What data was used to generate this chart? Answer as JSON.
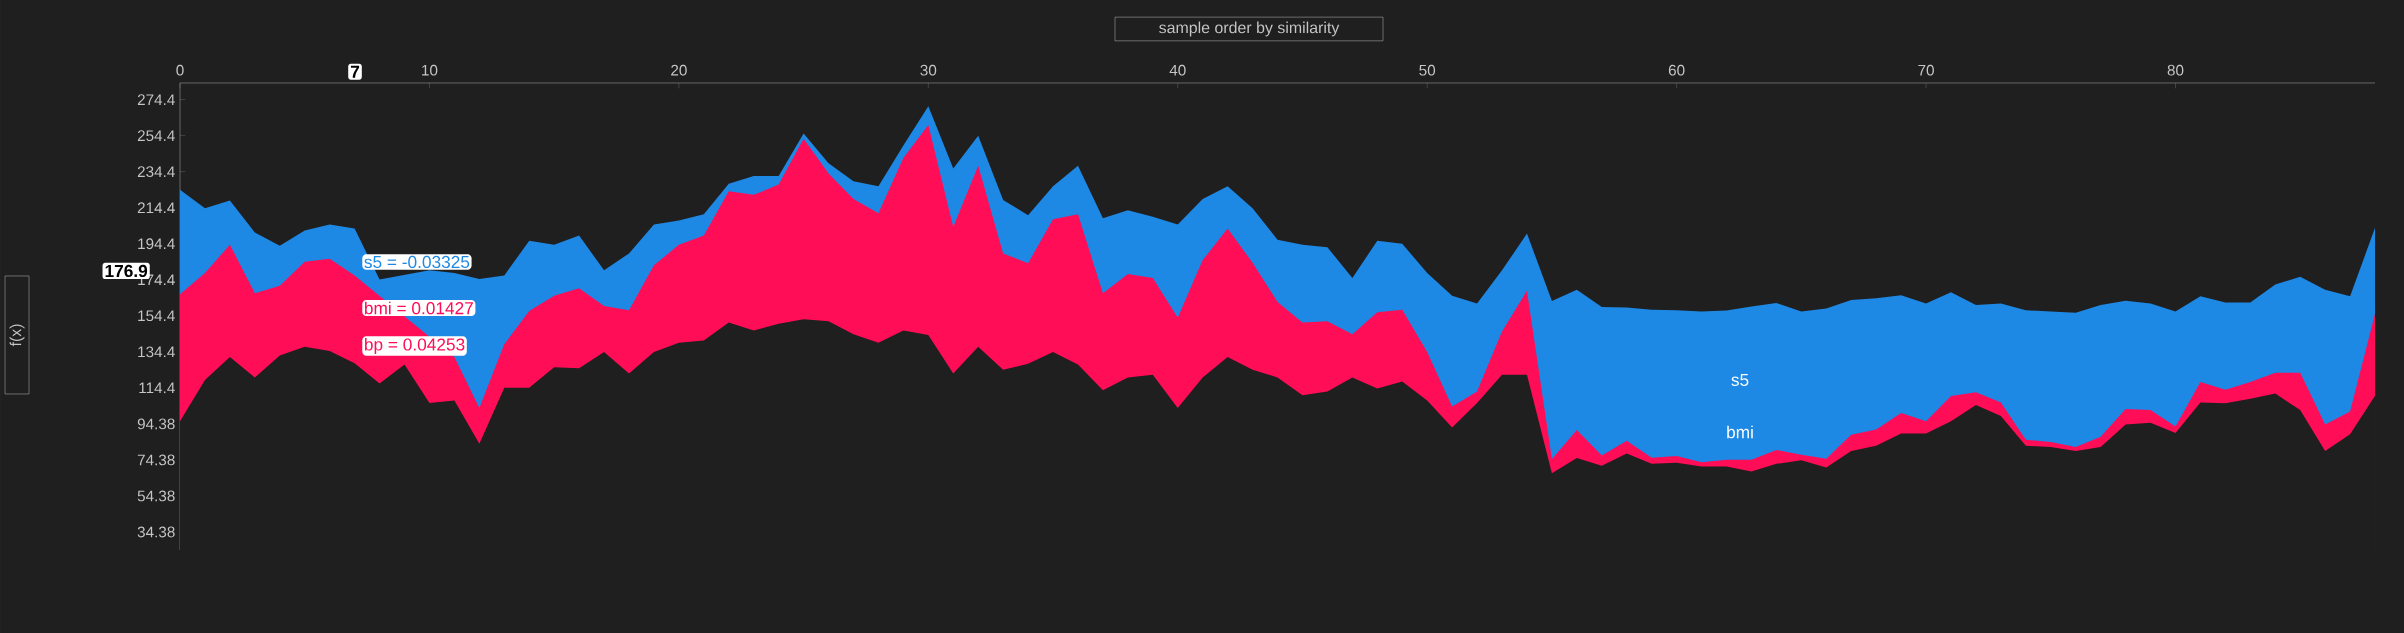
{
  "chart_data": {
    "type": "area",
    "x": [
      0,
      1,
      2,
      3,
      4,
      5,
      6,
      7,
      8,
      9,
      10,
      11,
      12,
      13,
      14,
      15,
      16,
      17,
      18,
      19,
      20,
      21,
      22,
      23,
      24,
      25,
      26,
      27,
      28,
      29,
      30,
      31,
      32,
      33,
      34,
      35,
      36,
      37,
      38,
      39,
      40,
      41,
      42,
      43,
      44,
      45,
      46,
      47,
      48,
      49,
      50,
      51,
      52,
      53,
      54,
      55,
      56,
      57,
      58,
      59,
      60,
      61,
      62,
      63,
      64,
      65,
      66,
      67,
      68,
      69,
      70,
      71,
      72,
      73,
      74,
      75,
      76,
      77,
      78,
      79,
      80,
      81,
      82,
      83,
      84,
      85,
      86,
      87,
      88
    ],
    "xlim": [
      0,
      88
    ],
    "xticks": [
      0,
      10,
      20,
      30,
      40,
      50,
      60,
      70,
      80
    ],
    "ylim": [
      24.4,
      283.6
    ],
    "yticks": [
      34.38,
      54.38,
      74.38,
      94.38,
      {
        "value": 114.38,
        "label": "114.4"
      },
      {
        "value": 134.38,
        "label": "134.4"
      },
      {
        "value": 154.38,
        "label": "154.4"
      },
      {
        "value": 174.38,
        "label": "174.4"
      },
      {
        "value": 194.38,
        "label": "194.4"
      },
      {
        "value": 214.38,
        "label": "214.4"
      },
      {
        "value": 234.38,
        "label": "234.4"
      },
      {
        "value": 254.38,
        "label": "254.4"
      },
      {
        "value": 274.38,
        "label": "274.4"
      }
    ],
    "series": [
      {
        "color": "#1e88e5",
        "values": [
          224.3,
          214.1,
          218.4,
          200.6,
          193.2,
          201.7,
          205.1,
          202.8,
          174.5,
          null,
          179.6,
          178.2,
          174.8,
          176.8,
          196.0,
          193.8,
          198.9,
          179.6,
          189.0,
          205.1,
          207.3,
          210.7,
          227.7,
          232.0,
          232.0,
          255.5,
          239.0,
          229.1,
          226.3,
          248.9,
          270.7,
          236.2,
          254.3,
          218.7,
          210.2,
          226.3,
          237.6,
          208.5,
          213.0,
          209.3,
          205.1,
          219.2,
          226.3,
          214.1,
          196.6,
          193.8,
          192.4,
          175.4,
          196.0,
          194.3,
          178.2,
          165.5,
          161.2,
          179.6,
          200.0,
          162.6,
          168.9,
          159.2,
          159.0,
          157.8,
          157.5,
          156.7,
          157.3,
          159.5,
          161.5,
          156.7,
          158.4,
          163.2,
          164.1,
          165.8,
          161.2,
          167.5,
          160.4,
          161.2,
          157.5,
          156.7,
          156.1,
          160.4,
          162.7,
          161.2,
          156.7,
          165.2,
          161.8,
          161.8,
          171.8,
          176.0,
          168.9,
          165.2,
          203.2
        ]
      },
      {
        "color": "#ff0d57",
        "values": [
          166.3,
          178.2,
          193.8,
          166.9,
          171.1,
          184.4,
          186.1,
          176.8,
          null,
          null,
          142.8,
          131.5,
          103.2,
          138.6,
          157.0,
          165.5,
          169.7,
          159.8,
          157.5,
          182.4,
          193.8,
          198.9,
          223.5,
          221.5,
          227.2,
          252.6,
          233.4,
          219.2,
          211.3,
          241.9,
          260.3,
          203.7,
          237.6,
          189.0,
          183.6,
          207.9,
          210.7,
          166.9,
          177.6,
          175.4,
          153.3,
          185.3,
          202.8,
          183.8,
          162.1,
          150.7,
          151.3,
          144.2,
          156.4,
          157.8,
          134.3,
          104.1,
          112.3,
          145.6,
          168.3,
          74.9,
          91.0,
          76.9,
          85.0,
          75.6,
          76.5,
          73.1,
          74.5,
          74.5,
          79.9,
          77.3,
          75.1,
          88.4,
          91.3,
          100.4,
          95.8,
          109.8,
          112.0,
          106.3,
          85.6,
          84.4,
          81.6,
          87.3,
          102.6,
          102.1,
          93.0,
          117.7,
          113.4,
          117.7,
          122.8,
          122.8,
          94.1,
          101.2,
          155.5
        ]
      },
      {
        "color": "#1f1f1f",
        "values": [
          95.8,
          118.8,
          131.5,
          120.2,
          132.3,
          137.2,
          134.9,
          128.1,
          116.8,
          127.3,
          106.0,
          107.4,
          83.4,
          114.5,
          114.5,
          125.8,
          125.3,
          134.3,
          122.4,
          134.3,
          139.4,
          140.6,
          150.7,
          146.2,
          149.9,
          152.4,
          151.3,
          144.2,
          139.4,
          146.2,
          143.7,
          122.4,
          137.2,
          124.4,
          127.8,
          134.3,
          127.3,
          113.1,
          120.2,
          121.6,
          103.2,
          120.2,
          131.5,
          124.4,
          120.2,
          110.3,
          112.3,
          120.2,
          114.0,
          117.9,
          107.4,
          92.4,
          106.0,
          121.6,
          121.6,
          67.0,
          75.5,
          71.2,
          77.9,
          72.2,
          72.8,
          70.8,
          70.8,
          68.0,
          72.2,
          74.2,
          70.2,
          79.3,
          82.2,
          89.0,
          89.0,
          95.8,
          104.9,
          98.7,
          82.2,
          81.6,
          79.3,
          81.6,
          94.1,
          95.0,
          89.3,
          106.3,
          105.8,
          108.3,
          111.2,
          102.1,
          79.3,
          88.7,
          110.0
        ]
      }
    ],
    "annotations": [
      "s5 = -0.03325",
      "bmi = 0.01427",
      "bp = 0.04253",
      "s5",
      "bmi",
      "7",
      "176.9",
      "sample order by similarity",
      "f(x)"
    ]
  }
}
